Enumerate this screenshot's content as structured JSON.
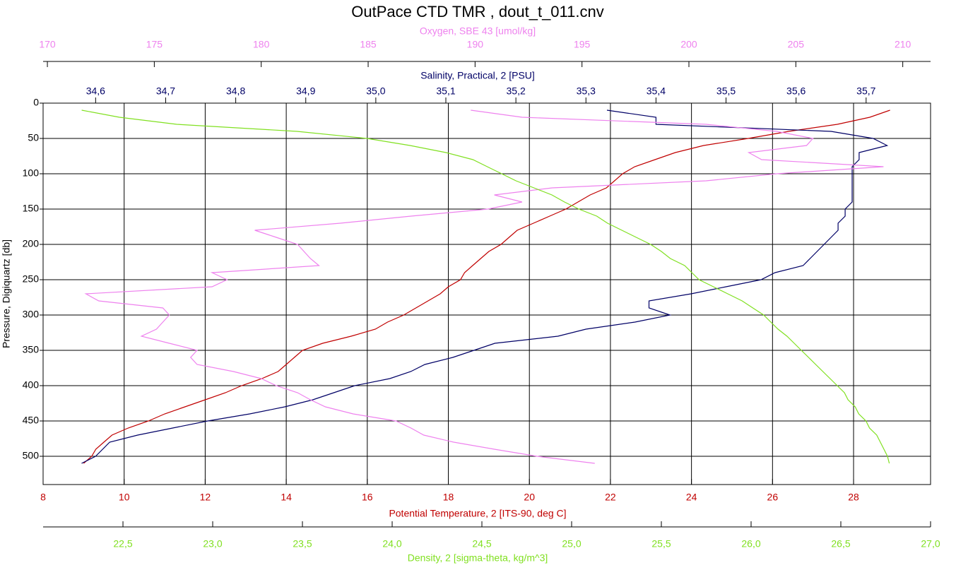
{
  "chart_data": {
    "type": "profile",
    "title": "OutPace CTD TMR , dout_t_011.cnv",
    "y_label": "Pressure, Digiquartz [db]",
    "ylim": [
      0,
      540
    ],
    "y_inverted": true,
    "yticks": [
      0,
      50,
      100,
      150,
      200,
      250,
      300,
      350,
      400,
      450,
      500
    ],
    "grid": true,
    "y": [
      10,
      20,
      30,
      40,
      50,
      60,
      70,
      80,
      90,
      100,
      110,
      120,
      130,
      140,
      150,
      160,
      170,
      180,
      190,
      200,
      210,
      220,
      230,
      240,
      250,
      260,
      270,
      280,
      290,
      300,
      310,
      320,
      330,
      340,
      350,
      360,
      370,
      380,
      390,
      400,
      410,
      420,
      430,
      440,
      450,
      460,
      470,
      480,
      490,
      500,
      510
    ],
    "series": [
      {
        "name": "Potential Temperature, 2 [ITS-90, deg C]",
        "color": "#c00000",
        "xlim": [
          8,
          29.9
        ],
        "xticks": [
          8,
          10,
          12,
          14,
          16,
          18,
          20,
          22,
          24,
          26,
          28
        ],
        "values": [
          28.9,
          28.4,
          27.6,
          26.4,
          25.4,
          24.3,
          23.6,
          23.1,
          22.6,
          22.3,
          22.1,
          21.9,
          21.5,
          21.2,
          20.9,
          20.5,
          20.1,
          19.7,
          19.5,
          19.3,
          19.0,
          18.8,
          18.6,
          18.4,
          18.3,
          18.0,
          17.8,
          17.5,
          17.2,
          16.9,
          16.5,
          16.2,
          15.6,
          14.9,
          14.4,
          14.2,
          14.0,
          13.8,
          13.4,
          12.9,
          12.5,
          12.0,
          11.5,
          11.0,
          10.6,
          10.1,
          9.7,
          9.5,
          9.3,
          9.2,
          9.0
        ]
      },
      {
        "name": "Salinity, Practical, 2 [PSU]",
        "color": "#000066",
        "xlim": [
          34.525,
          35.792
        ],
        "xticks": [
          {
            "value": 34.6,
            "label": "34,6"
          },
          {
            "value": 34.7,
            "label": "34,7"
          },
          {
            "value": 34.8,
            "label": "34,8"
          },
          {
            "value": 34.9,
            "label": "34,9"
          },
          {
            "value": 35.0,
            "label": "35,0"
          },
          {
            "value": 35.1,
            "label": "35,1"
          },
          {
            "value": 35.2,
            "label": "35,2"
          },
          {
            "value": 35.3,
            "label": "35,3"
          },
          {
            "value": 35.4,
            "label": "35,4"
          },
          {
            "value": 35.5,
            "label": "35,5"
          },
          {
            "value": 35.6,
            "label": "35,6"
          },
          {
            "value": 35.7,
            "label": "35,7"
          }
        ],
        "values": [
          35.33,
          35.4,
          35.4,
          35.65,
          35.71,
          35.73,
          35.69,
          35.69,
          35.68,
          35.68,
          35.68,
          35.68,
          35.68,
          35.68,
          35.67,
          35.67,
          35.66,
          35.66,
          35.65,
          35.64,
          35.63,
          35.62,
          35.61,
          35.57,
          35.55,
          35.5,
          35.45,
          35.39,
          35.39,
          35.42,
          35.37,
          35.3,
          35.26,
          35.17,
          35.14,
          35.11,
          35.07,
          35.05,
          35.02,
          34.97,
          34.94,
          34.91,
          34.87,
          34.82,
          34.76,
          34.71,
          34.66,
          34.62,
          34.61,
          34.6,
          34.58
        ]
      },
      {
        "name": "Oxygen, SBE 43 [umol/kg]",
        "color": "#ee82ee",
        "xlim": [
          169.8,
          211.3
        ],
        "xticks": [
          170,
          175,
          180,
          185,
          190,
          195,
          200,
          205,
          210
        ],
        "values": [
          189.8,
          192.2,
          200.8,
          204.1,
          205.8,
          205.5,
          202.8,
          203.4,
          209.1,
          204.1,
          200.8,
          193.6,
          190.9,
          192.2,
          190.6,
          187.0,
          183.7,
          179.7,
          180.7,
          181.7,
          182.0,
          182.3,
          182.7,
          177.7,
          178.4,
          177.7,
          171.8,
          172.4,
          175.4,
          175.7,
          175.4,
          175.1,
          174.4,
          175.7,
          177.0,
          176.7,
          177.0,
          178.7,
          180.0,
          180.7,
          181.7,
          182.3,
          183.0,
          184.3,
          186.3,
          187.0,
          187.6,
          189.0,
          190.9,
          192.9,
          195.6
        ]
      },
      {
        "name": "Density, 2 [sigma-theta, kg/m^3]",
        "color": "#80e020",
        "xlim": [
          22.055,
          27.0
        ],
        "xticks": [
          {
            "value": 22.5,
            "label": "22,5"
          },
          {
            "value": 23.0,
            "label": "23,0"
          },
          {
            "value": 23.5,
            "label": "23,5"
          },
          {
            "value": 24.0,
            "label": "24,0"
          },
          {
            "value": 24.5,
            "label": "24,5"
          },
          {
            "value": 25.0,
            "label": "25,0"
          },
          {
            "value": 25.5,
            "label": "25,5"
          },
          {
            "value": 26.0,
            "label": "26,0"
          },
          {
            "value": 26.5,
            "label": "26,5"
          },
          {
            "value": 27.0,
            "label": "27,0"
          }
        ],
        "values": [
          22.27,
          22.48,
          22.8,
          23.47,
          23.86,
          24.1,
          24.3,
          24.45,
          24.53,
          24.61,
          24.69,
          24.79,
          24.89,
          24.96,
          25.04,
          25.14,
          25.2,
          25.28,
          25.36,
          25.44,
          25.5,
          25.55,
          25.63,
          25.67,
          25.71,
          25.79,
          25.87,
          25.95,
          26.01,
          26.07,
          26.11,
          26.15,
          26.2,
          26.24,
          26.28,
          26.32,
          26.36,
          26.4,
          26.44,
          26.48,
          26.52,
          26.54,
          26.58,
          26.6,
          26.64,
          26.66,
          26.7,
          26.72,
          26.74,
          26.76,
          26.77
        ]
      }
    ]
  }
}
